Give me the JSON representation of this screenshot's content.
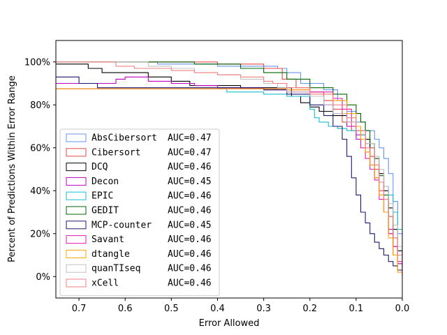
{
  "chart_data": {
    "type": "line",
    "title": "",
    "xlabel": "Error Allowed",
    "ylabel": "Percent of Predictions Within Error Range",
    "xlim": [
      0.75,
      0.0
    ],
    "ylim": [
      -0.1,
      1.1
    ],
    "x_inverted": true,
    "x_ticks": [
      0.7,
      0.6,
      0.5,
      0.4,
      0.3,
      0.2,
      0.1,
      0.0
    ],
    "x_tick_labels": [
      "0.7",
      "0.6",
      "0.5",
      "0.4",
      "0.3",
      "0.2",
      "0.1",
      "0.0"
    ],
    "y_ticks": [
      0.0,
      0.2,
      0.4,
      0.6,
      0.8,
      1.0
    ],
    "y_tick_labels": [
      "0%",
      "20%",
      "40%",
      "60%",
      "80%",
      "100%"
    ],
    "grid": false,
    "legend_position": "lower-left",
    "series": [
      {
        "name": "AbsCibersort",
        "auc_label": "AUC=0.47",
        "color": "#6495ED",
        "x": [
          0.75,
          0.55,
          0.53,
          0.4,
          0.3,
          0.27,
          0.25,
          0.22,
          0.17,
          0.14,
          0.12,
          0.1,
          0.08,
          0.06,
          0.05,
          0.04,
          0.03,
          0.02,
          0.01,
          0.0
        ],
        "y": [
          1.0,
          1.0,
          0.99,
          0.98,
          0.98,
          0.97,
          0.95,
          0.9,
          0.87,
          0.82,
          0.77,
          0.72,
          0.68,
          0.64,
          0.6,
          0.55,
          0.48,
          0.35,
          0.2,
          0.08
        ]
      },
      {
        "name": "Cibersort",
        "auc_label": "AUC=0.47",
        "color": "#E8474A",
        "x": [
          0.75,
          0.41,
          0.4,
          0.3,
          0.26,
          0.23,
          0.2,
          0.17,
          0.15,
          0.13,
          0.11,
          0.09,
          0.08,
          0.07,
          0.06,
          0.05,
          0.04,
          0.03,
          0.02,
          0.01,
          0.0
        ],
        "y": [
          1.0,
          1.0,
          0.99,
          0.97,
          0.92,
          0.88,
          0.86,
          0.82,
          0.78,
          0.72,
          0.68,
          0.66,
          0.62,
          0.56,
          0.5,
          0.4,
          0.3,
          0.2,
          0.1,
          0.03,
          0.0
        ]
      },
      {
        "name": "DCQ",
        "auc_label": "AUC=0.46",
        "color": "#000000",
        "x": [
          0.75,
          0.7,
          0.68,
          0.65,
          0.55,
          0.5,
          0.46,
          0.4,
          0.35,
          0.3,
          0.24,
          0.22,
          0.2,
          0.18,
          0.15,
          0.12,
          0.1,
          0.08,
          0.07,
          0.06,
          0.05,
          0.04,
          0.03,
          0.02,
          0.01,
          0.0
        ],
        "y": [
          0.99,
          0.99,
          0.97,
          0.95,
          0.93,
          0.91,
          0.89,
          0.89,
          0.88,
          0.88,
          0.84,
          0.81,
          0.79,
          0.77,
          0.75,
          0.72,
          0.68,
          0.64,
          0.6,
          0.55,
          0.48,
          0.4,
          0.32,
          0.22,
          0.12,
          0.04
        ]
      },
      {
        "name": "Decon",
        "auc_label": "AUC=0.45",
        "color": "#BF00BF",
        "x": [
          0.75,
          0.65,
          0.62,
          0.6,
          0.55,
          0.5,
          0.45,
          0.4,
          0.3,
          0.25,
          0.2,
          0.17,
          0.15,
          0.12,
          0.1,
          0.08,
          0.07,
          0.06,
          0.05,
          0.04,
          0.03,
          0.02,
          0.01,
          0.0
        ],
        "y": [
          0.9,
          0.9,
          0.92,
          0.93,
          0.91,
          0.9,
          0.89,
          0.88,
          0.87,
          0.86,
          0.84,
          0.8,
          0.76,
          0.7,
          0.64,
          0.58,
          0.52,
          0.46,
          0.38,
          0.3,
          0.22,
          0.14,
          0.06,
          0.02
        ]
      },
      {
        "name": "EPIC",
        "auc_label": "AUC=0.46",
        "color": "#17BECF",
        "x": [
          0.75,
          0.4,
          0.38,
          0.35,
          0.3,
          0.25,
          0.2,
          0.19,
          0.18,
          0.16,
          0.14,
          0.12,
          0.1,
          0.08,
          0.06,
          0.05,
          0.04,
          0.03,
          0.02,
          0.01,
          0.0
        ],
        "y": [
          0.875,
          0.875,
          0.86,
          0.86,
          0.85,
          0.84,
          0.78,
          0.74,
          0.72,
          0.7,
          0.69,
          0.68,
          0.66,
          0.62,
          0.56,
          0.5,
          0.42,
          0.38,
          0.3,
          0.22,
          0.1
        ]
      },
      {
        "name": "GEDIT",
        "auc_label": "AUC=0.46",
        "color": "#006400",
        "x": [
          0.75,
          0.65,
          0.6,
          0.45,
          0.35,
          0.3,
          0.25,
          0.2,
          0.15,
          0.12,
          0.1,
          0.09,
          0.08,
          0.07,
          0.06,
          0.05,
          0.04,
          0.03,
          0.02,
          0.01,
          0.0
        ],
        "y": [
          1.0,
          1.0,
          1.0,
          0.99,
          0.97,
          0.95,
          0.92,
          0.88,
          0.85,
          0.8,
          0.76,
          0.72,
          0.68,
          0.62,
          0.55,
          0.47,
          0.38,
          0.28,
          0.18,
          0.1,
          0.05
        ]
      },
      {
        "name": "MCP-counter",
        "auc_label": "AUC=0.45",
        "color": "#191970",
        "x": [
          0.75,
          0.72,
          0.7,
          0.66,
          0.4,
          0.3,
          0.25,
          0.2,
          0.17,
          0.15,
          0.13,
          0.12,
          0.11,
          0.1,
          0.09,
          0.08,
          0.07,
          0.06,
          0.05,
          0.04,
          0.03,
          0.02,
          0.01,
          0.0
        ],
        "y": [
          0.93,
          0.93,
          0.9,
          0.88,
          0.88,
          0.87,
          0.85,
          0.8,
          0.75,
          0.7,
          0.64,
          0.56,
          0.46,
          0.38,
          0.3,
          0.25,
          0.2,
          0.16,
          0.13,
          0.1,
          0.07,
          0.05,
          0.03,
          0.01
        ]
      },
      {
        "name": "Savant",
        "auc_label": "AUC=0.46",
        "color": "#E619B2",
        "x": [
          0.75,
          0.5,
          0.45,
          0.4,
          0.35,
          0.3,
          0.25,
          0.2,
          0.15,
          0.13,
          0.11,
          0.1,
          0.09,
          0.08,
          0.07,
          0.06,
          0.05,
          0.04,
          0.03,
          0.02,
          0.01,
          0.0
        ],
        "y": [
          0.875,
          0.875,
          0.875,
          0.875,
          0.875,
          0.875,
          0.87,
          0.86,
          0.83,
          0.78,
          0.72,
          0.66,
          0.6,
          0.55,
          0.5,
          0.45,
          0.36,
          0.3,
          0.2,
          0.14,
          0.07,
          0.03
        ]
      },
      {
        "name": "dtangle",
        "auc_label": "AUC=0.46",
        "color": "#FFA500",
        "x": [
          0.75,
          0.4,
          0.35,
          0.3,
          0.25,
          0.2,
          0.15,
          0.12,
          0.1,
          0.09,
          0.08,
          0.07,
          0.06,
          0.05,
          0.04,
          0.03,
          0.02,
          0.01,
          0.0
        ],
        "y": [
          0.875,
          0.875,
          0.875,
          0.875,
          0.87,
          0.85,
          0.82,
          0.76,
          0.7,
          0.64,
          0.58,
          0.52,
          0.46,
          0.38,
          0.3,
          0.18,
          0.1,
          0.02,
          0.0
        ]
      },
      {
        "name": "quanTIseq",
        "auc_label": "AUC=0.46",
        "color": "#C0C0C0",
        "x": [
          0.75,
          0.55,
          0.5,
          0.45,
          0.4,
          0.35,
          0.3,
          0.27,
          0.25,
          0.2,
          0.17,
          0.15,
          0.12,
          0.1,
          0.08,
          0.06,
          0.05,
          0.04,
          0.03,
          0.02,
          0.01,
          0.0
        ],
        "y": [
          1.0,
          0.98,
          0.97,
          0.95,
          0.94,
          0.92,
          0.9,
          0.88,
          0.86,
          0.84,
          0.8,
          0.76,
          0.72,
          0.68,
          0.62,
          0.56,
          0.5,
          0.42,
          0.34,
          0.24,
          0.14,
          0.06
        ]
      },
      {
        "name": "xCell",
        "auc_label": "AUC=0.46",
        "color": "#F08080",
        "x": [
          0.75,
          0.62,
          0.58,
          0.5,
          0.45,
          0.4,
          0.35,
          0.3,
          0.28,
          0.25,
          0.2,
          0.15,
          0.12,
          0.1,
          0.08,
          0.06,
          0.05,
          0.04,
          0.03,
          0.02,
          0.01,
          0.0
        ],
        "y": [
          1.0,
          0.98,
          0.97,
          0.96,
          0.95,
          0.94,
          0.93,
          0.91,
          0.9,
          0.88,
          0.85,
          0.8,
          0.74,
          0.68,
          0.6,
          0.52,
          0.44,
          0.36,
          0.28,
          0.18,
          0.1,
          0.04
        ]
      }
    ]
  }
}
